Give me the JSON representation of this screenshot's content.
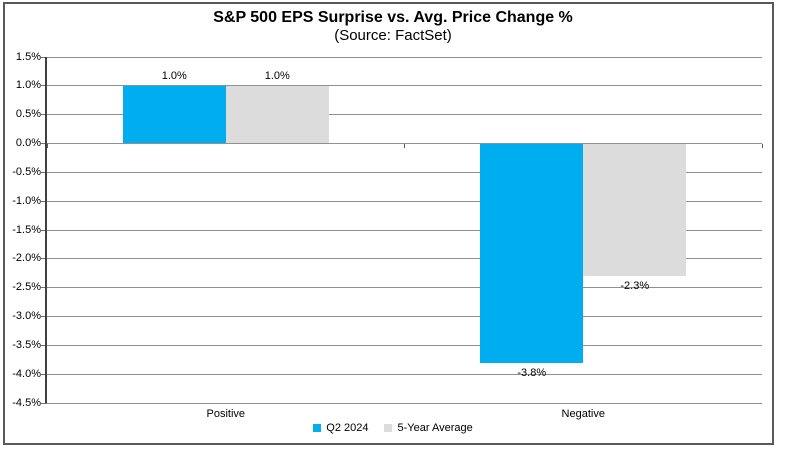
{
  "title": "S&P 500 EPS Surprise vs. Avg. Price Change %",
  "subtitle": "(Source: FactSet)",
  "colors": {
    "series_q2_2024": "#00AEEF",
    "series_5yr_avg": "#DCDCDC",
    "gridline": "#909090",
    "axis_line": "#404040",
    "frame_border": "#595959",
    "background": "#FFFFFF",
    "text": "#000000"
  },
  "chart_data": {
    "type": "bar",
    "title": "S&P 500 EPS Surprise vs. Avg. Price Change %",
    "subtitle": "(Source: FactSet)",
    "categories": [
      "Positive",
      "Negative"
    ],
    "series": [
      {
        "name": "Q2 2024",
        "color": "#00AEEF",
        "values": [
          1.0,
          -3.8
        ],
        "labels": [
          "1.0%",
          "-3.8%"
        ]
      },
      {
        "name": "5-Year Average",
        "color": "#DCDCDC",
        "values": [
          1.0,
          -2.3
        ],
        "labels": [
          "1.0%",
          "-2.3%"
        ]
      }
    ],
    "xlabel": "",
    "ylabel": "",
    "ylim": [
      -4.5,
      1.5
    ],
    "ytick_step": 0.5,
    "ytick_labels": [
      "1.5%",
      "1.0%",
      "0.5%",
      "0.0%",
      "-0.5%",
      "-1.0%",
      "-1.5%",
      "-2.0%",
      "-2.5%",
      "-3.0%",
      "-3.5%",
      "-4.0%",
      "-4.5%"
    ],
    "grid": true,
    "legend_position": "bottom"
  }
}
